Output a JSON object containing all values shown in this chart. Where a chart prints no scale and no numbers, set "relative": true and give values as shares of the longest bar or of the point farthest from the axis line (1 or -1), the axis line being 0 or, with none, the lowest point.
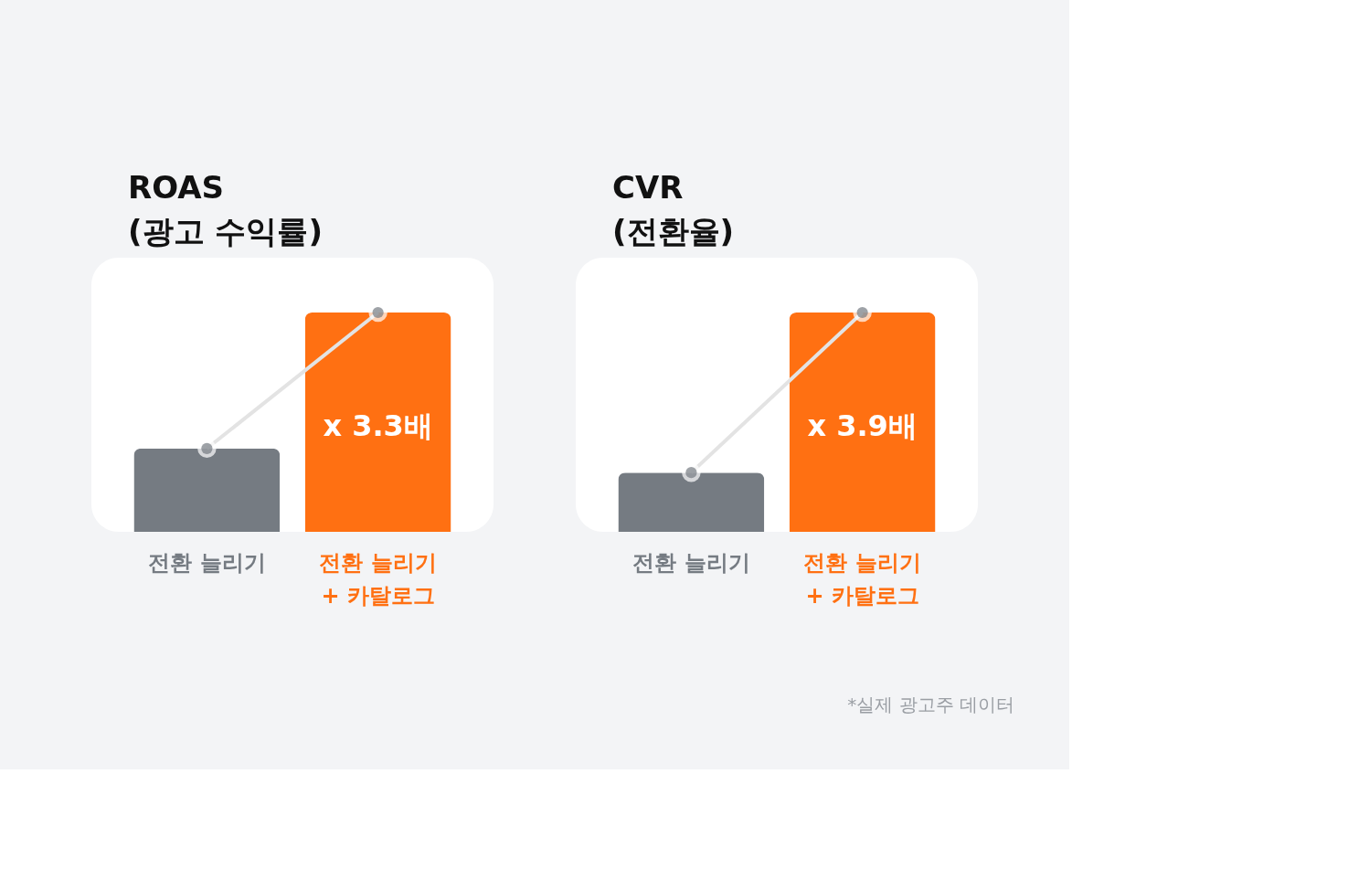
{
  "chart_data": [
    {
      "type": "bar",
      "title": "ROAS\n(광고 수익률)",
      "relative": true,
      "categories": [
        "전환 늘리기",
        "전환 늘리기\n+ 카탈로그"
      ],
      "values": [
        0.38,
        1
      ],
      "colors": [
        "#757b82",
        "#ff7012"
      ],
      "series": [
        {
          "type": "line",
          "color": "#e3e3e3",
          "marker": "circle",
          "values": [
            0.38,
            1
          ]
        }
      ],
      "annotations": [
        "x 3.3배"
      ]
    },
    {
      "type": "bar",
      "title": "CVR\n(전환율)",
      "relative": true,
      "categories": [
        "전환 늘리기",
        "전환 늘리기\n+ 카탈로그"
      ],
      "values": [
        0.27,
        1
      ],
      "colors": [
        "#757b82",
        "#ff7012"
      ],
      "series": [
        {
          "type": "line",
          "color": "#e3e3e3",
          "marker": "circle",
          "values": [
            0.27,
            1
          ]
        }
      ],
      "annotations": [
        "x 3.9배",
        "*실제 광고주 데이터"
      ]
    }
  ]
}
